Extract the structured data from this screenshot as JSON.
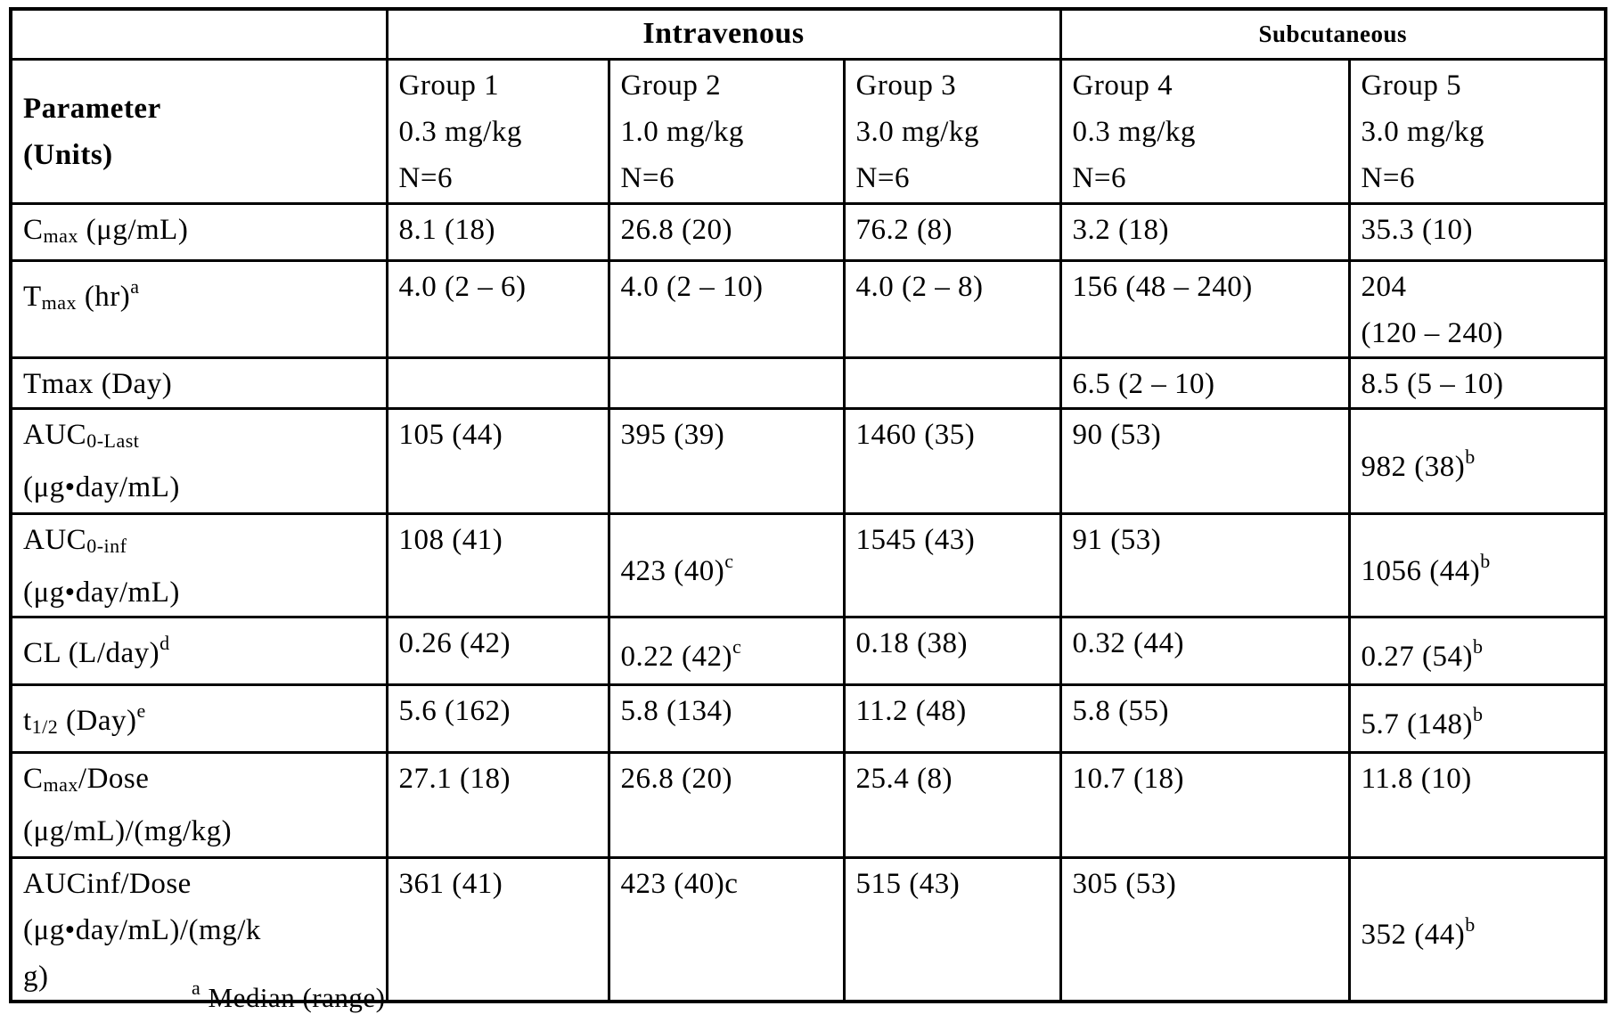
{
  "page": {
    "background_color": "#ffffff",
    "text_color": "#000000",
    "border_color": "#000000"
  },
  "table": {
    "header": {
      "parameter_line1": "Parameter",
      "parameter_line2": "(Units)",
      "routes": [
        {
          "label": "Intravenous",
          "span": 3
        },
        {
          "label": "Subcutaneous",
          "span": 2
        }
      ],
      "columns": [
        {
          "group": "Group 1",
          "dose": "0.3 mg/kg",
          "n": "N=6"
        },
        {
          "group": "Group 2",
          "dose": "1.0 mg/kg",
          "n": "N=6"
        },
        {
          "group": "Group 3",
          "dose": "3.0 mg/kg",
          "n": "N=6"
        },
        {
          "group": "Group 4",
          "dose": "0.3 mg/kg",
          "n": "N=6"
        },
        {
          "group": "Group 5",
          "dose": "3.0 mg/kg",
          "n": "N=6"
        }
      ]
    },
    "rows": [
      {
        "label_lines": [
          [
            {
              "t": "C"
            },
            {
              "t": "max",
              "s": "sub"
            },
            {
              "t": " (μg/mL)"
            }
          ]
        ],
        "cells": [
          {
            "text": "8.1 (18)"
          },
          {
            "text": "26.8 (20)"
          },
          {
            "text": "76.2 (8)"
          },
          {
            "text": "3.2 (18)"
          },
          {
            "text": "35.3 (10)"
          }
        ]
      },
      {
        "label_lines": [
          [
            {
              "t": "T"
            },
            {
              "t": "max",
              "s": "sub"
            },
            {
              "t": " (hr)"
            },
            {
              "t": "a",
              "s": "sup"
            }
          ]
        ],
        "cells": [
          {
            "text": "4.0 (2 – 6)"
          },
          {
            "text": "4.0 (2 – 10)"
          },
          {
            "text": "4.0 (2 – 8)"
          },
          {
            "text": "156 (48 – 240)"
          },
          {
            "lines": [
              "204",
              "(120 – 240)"
            ]
          }
        ]
      },
      {
        "label_lines": [
          [
            {
              "t": "Tmax (Day)"
            }
          ]
        ],
        "cells": [
          {
            "text": ""
          },
          {
            "text": ""
          },
          {
            "text": ""
          },
          {
            "text": "6.5 (2 – 10)"
          },
          {
            "text": "8.5 (5 – 10)"
          }
        ]
      },
      {
        "label_lines": [
          [
            {
              "t": "AUC"
            },
            {
              "t": "0-Last",
              "s": "sub"
            }
          ],
          [
            {
              "t": "(μg•day/mL)"
            }
          ]
        ],
        "cells": [
          {
            "text": "105 (44)"
          },
          {
            "text": "395 (39)"
          },
          {
            "text": "1460 (35)"
          },
          {
            "text": "90 (53)"
          },
          {
            "text": "982 (38)",
            "sup": "b"
          }
        ]
      },
      {
        "label_lines": [
          [
            {
              "t": "AUC"
            },
            {
              "t": "0-inf",
              "s": "sub"
            }
          ],
          [
            {
              "t": "(μg•day/mL)"
            }
          ]
        ],
        "cells": [
          {
            "text": "108 (41)"
          },
          {
            "text": "423 (40)",
            "sup": "c"
          },
          {
            "text": "1545 (43)"
          },
          {
            "text": "91 (53)"
          },
          {
            "text": "1056 (44)",
            "sup": "b"
          }
        ]
      },
      {
        "label_lines": [
          [
            {
              "t": "CL (L/day)"
            },
            {
              "t": "d",
              "s": "sup"
            }
          ]
        ],
        "cells": [
          {
            "text": "0.26 (42)"
          },
          {
            "text": "0.22 (42)",
            "sup": "c"
          },
          {
            "text": "0.18 (38)"
          },
          {
            "text": "0.32 (44)"
          },
          {
            "text": "0.27 (54)",
            "sup": "b"
          }
        ]
      },
      {
        "label_lines": [
          [
            {
              "t": "t"
            },
            {
              "t": "1/2",
              "s": "sub"
            },
            {
              "t": " (Day)"
            },
            {
              "t": "e",
              "s": "sup"
            }
          ]
        ],
        "cells": [
          {
            "text": "5.6 (162)"
          },
          {
            "text": "5.8 (134)"
          },
          {
            "text": "11.2 (48)"
          },
          {
            "text": "5.8 (55)"
          },
          {
            "text": "5.7 (148)",
            "sup": "b"
          }
        ]
      },
      {
        "label_lines": [
          [
            {
              "t": "C"
            },
            {
              "t": "max",
              "s": "sub"
            },
            {
              "t": "/Dose"
            }
          ],
          [
            {
              "t": "(μg/mL)/(mg/kg)"
            }
          ]
        ],
        "cells": [
          {
            "text": "27.1 (18)"
          },
          {
            "text": "26.8 (20)"
          },
          {
            "text": "25.4 (8)"
          },
          {
            "text": "10.7 (18)"
          },
          {
            "text": "11.8 (10)"
          }
        ]
      },
      {
        "label_lines": [
          [
            {
              "t": "AUCinf/Dose"
            }
          ],
          [
            {
              "t": "(μg•day/mL)/(mg/k"
            }
          ],
          [
            {
              "t": "g)"
            }
          ]
        ],
        "cells": [
          {
            "text": "361 (41)"
          },
          {
            "text": "423 (40)c"
          },
          {
            "text": "515 (43)"
          },
          {
            "text": "305 (53)"
          },
          {
            "text": "352 (44)",
            "sup": "b"
          }
        ]
      }
    ]
  },
  "footnote": {
    "marker": "a",
    "text": "Median (range)"
  }
}
